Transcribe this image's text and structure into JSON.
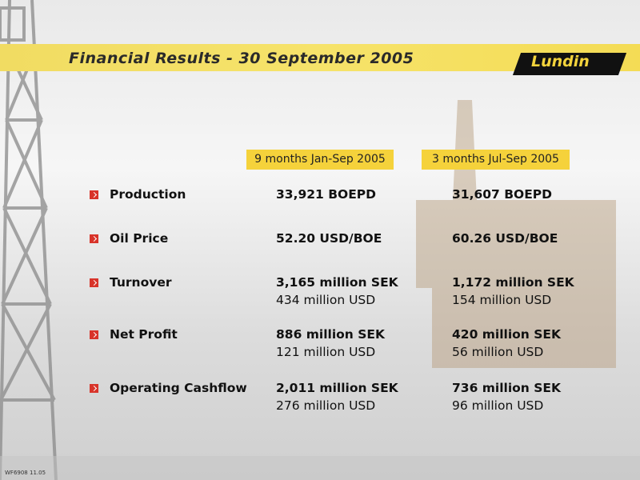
{
  "header": {
    "title": "Financial Results - 30 September 2005",
    "logo": "Lundin"
  },
  "table": {
    "columns": [
      "9 months Jan-Sep 2005",
      "3 months Jul-Sep 2005"
    ],
    "rows": [
      {
        "label": "Production",
        "cells": [
          [
            "33,921 BOEPD"
          ],
          [
            "31,607 BOEPD"
          ]
        ]
      },
      {
        "label": "Oil Price",
        "cells": [
          [
            "52.20 USD/BOE"
          ],
          [
            "60.26 USD/BOE"
          ]
        ]
      },
      {
        "label": "Turnover",
        "cells": [
          [
            "3,165 million SEK",
            "434 million USD"
          ],
          [
            "1,172 million SEK",
            "154 million USD"
          ]
        ]
      },
      {
        "label": "Net Profit",
        "cells": [
          [
            "886 million SEK",
            "121 million USD"
          ],
          [
            "420 million SEK",
            "56 million USD"
          ]
        ]
      },
      {
        "label": "Operating Cashflow",
        "cells": [
          [
            "2,011 million SEK",
            "276 million USD"
          ],
          [
            "736 million SEK",
            "96 million USD"
          ]
        ]
      }
    ]
  },
  "footer": "WF6908 11.05"
}
